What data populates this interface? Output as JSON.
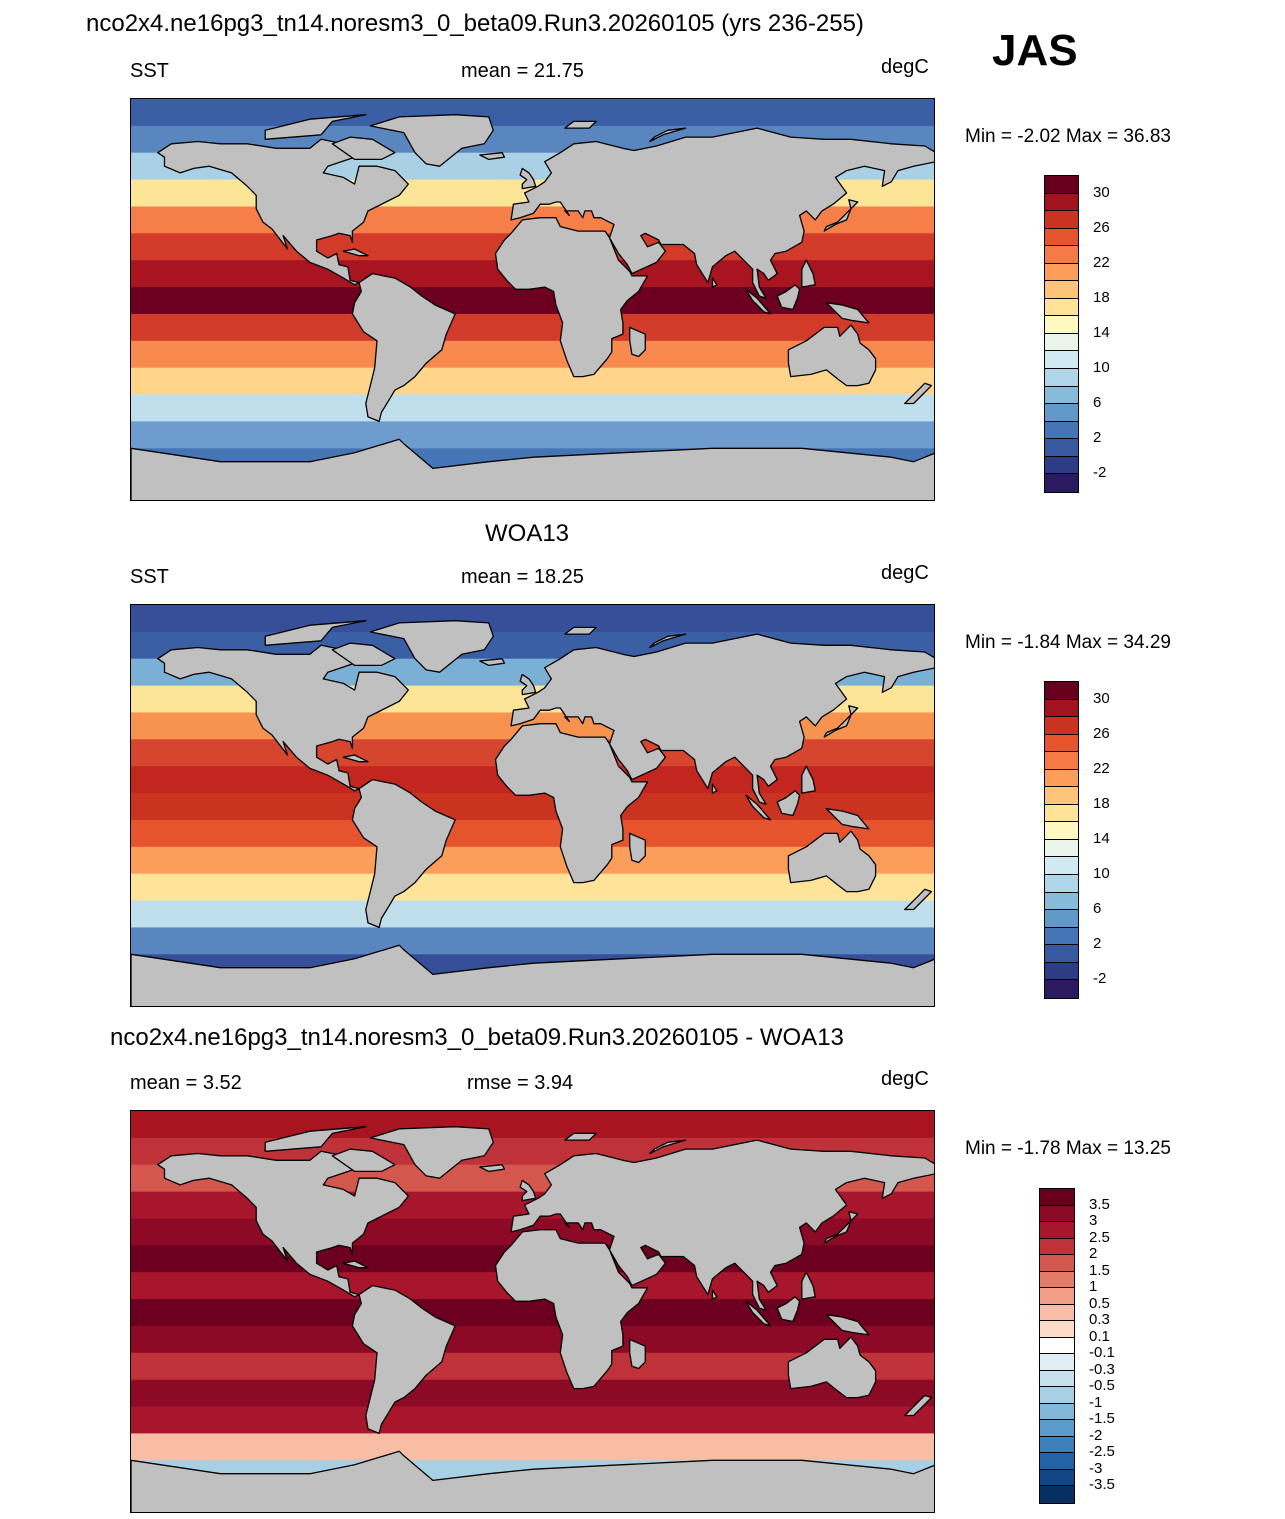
{
  "header": {
    "title": "nco2x4.ne16pg3_tn14.noresm3_0_beta09.Run3.20260105 (yrs 236-255)",
    "season": "JAS"
  },
  "panels": [
    {
      "id": "model",
      "title": "",
      "left_label": "SST",
      "center_label": "mean =  21.75",
      "right_label": "degC",
      "minmax": "Min =  -2.02 Max =  36.83"
    },
    {
      "id": "obs",
      "title": "WOA13",
      "left_label": "SST",
      "center_label": "mean =  18.25",
      "right_label": "degC",
      "minmax": "Min =  -1.84 Max =  34.29"
    },
    {
      "id": "diff",
      "title": "nco2x4.ne16pg3_tn14.noresm3_0_beta09.Run3.20260105 - WOA13",
      "left_label": "mean =   3.52",
      "center_label": "rmse =   3.94",
      "right_label": "degC",
      "minmax": "Min =  -1.78 Max =  13.25"
    }
  ],
  "colorbars": {
    "sst": {
      "labels": [
        "30",
        "26",
        "22",
        "18",
        "14",
        "10",
        "6",
        "2",
        "-2"
      ],
      "colors": [
        "#67001f",
        "#a1141f",
        "#c9331f",
        "#e6542e",
        "#f67a46",
        "#fb9e5a",
        "#fdc47a",
        "#fee399",
        "#fff8c0",
        "#eaf5ea",
        "#d1e9f2",
        "#aed6e8",
        "#86bbd9",
        "#6199c8",
        "#4575b4",
        "#37599f",
        "#2c3d85",
        "#2b1a5f"
      ]
    },
    "diff": {
      "labels": [
        "3.5",
        "3",
        "2.5",
        "2",
        "1.5",
        "1",
        "0.5",
        "0.3",
        "0.1",
        "-0.1",
        "-0.3",
        "-0.5",
        "-1",
        "-1.5",
        "-2",
        "-2.5",
        "-3",
        "-3.5"
      ],
      "colors": [
        "#67001f",
        "#8c0a26",
        "#a8162c",
        "#c0323a",
        "#d4574e",
        "#e47b67",
        "#f29e86",
        "#f8bea5",
        "#fcdcc8",
        "#ffffff",
        "#e2eef5",
        "#c8e0ee",
        "#a7d0e4",
        "#80b8d8",
        "#5b9ccb",
        "#3b7fbb",
        "#2362a4",
        "#114784",
        "#053061"
      ]
    }
  },
  "map_colors": {
    "land": "#c0c0c0",
    "model_bands": [
      "#3a5fa4",
      "#5a86c0",
      "#a9d0e4",
      "#fde598",
      "#f67e48",
      "#d23b2a",
      "#a8141f",
      "#6d0020",
      "#d23b2a",
      "#f98a4f",
      "#fed58a",
      "#bfdfec",
      "#6e9cce",
      "#4575b4",
      "#32509a"
    ],
    "obs_bands": [
      "#364f98",
      "#3a5fa4",
      "#7bb0d6",
      "#fde598",
      "#f8934f",
      "#d6452e",
      "#c2261f",
      "#c9331f",
      "#e6542e",
      "#fb9e5a",
      "#fee399",
      "#bfdfec",
      "#5a86c0",
      "#364f98",
      "#364f98"
    ],
    "diff_bands": [
      "#a8141f",
      "#c0323a",
      "#d4574e",
      "#a8162c",
      "#8c0a26",
      "#6d0020",
      "#a8162c",
      "#6d0020",
      "#8c0a26",
      "#c0323a",
      "#8c0a26",
      "#a8162c",
      "#f8bea5",
      "#a7d0e4",
      "#c0323a"
    ]
  }
}
